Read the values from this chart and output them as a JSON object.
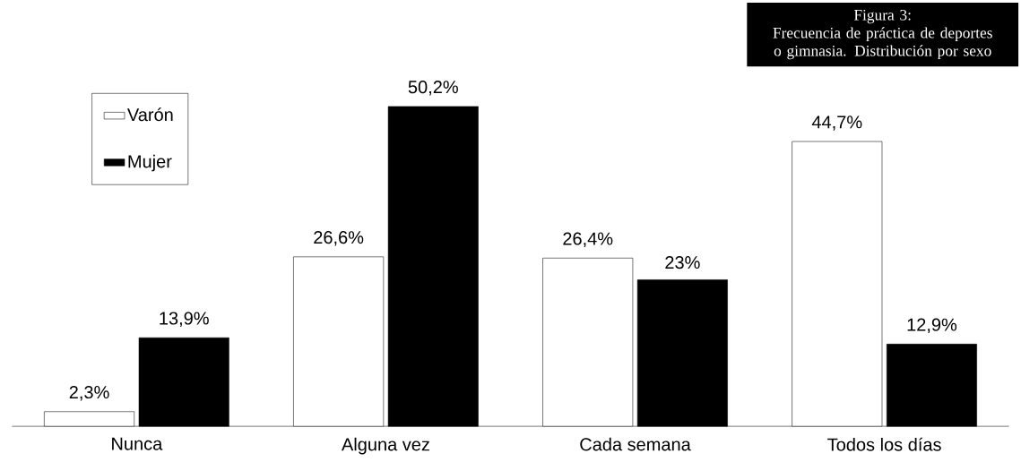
{
  "chart_data": {
    "type": "bar",
    "title": "Figura 3:",
    "subtitle": "Frecuencia de práctica de deportes o gimnasia. Distribución por sexo",
    "categories": [
      "Nunca",
      "Alguna vez",
      "Cada semana",
      "Todos los días"
    ],
    "series": [
      {
        "name": "Varón",
        "color": "#ffffff",
        "values": [
          2.3,
          26.6,
          26.4,
          44.7
        ],
        "value_labels": [
          "2,3%",
          "26,6%",
          "26,4%",
          "44,7%"
        ]
      },
      {
        "name": "Mujer",
        "color": "#000000",
        "values": [
          13.9,
          50.2,
          23,
          12.9
        ],
        "value_labels": [
          "13,9%",
          "50,2%",
          "23%",
          "12,9%"
        ]
      }
    ],
    "legend": "top left"
  }
}
